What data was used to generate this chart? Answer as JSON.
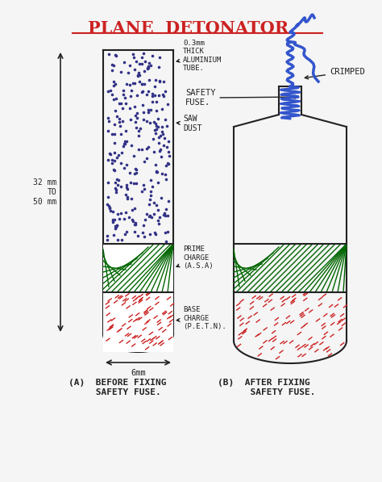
{
  "title": "PLANE  DETONATOR.",
  "title_color": "#cc2222",
  "bg_color": "#f5f5f5",
  "label_a": "(A)  BEFORE FIXING\n     SAFETY FUSE.",
  "label_b": "(B)  AFTER FIXING\n      SAFETY FUSE.",
  "annotation_aluminium": "0.3mm\nTHICK\nALUMINIUM\nTUBE.",
  "annotation_sawdust": "SAW\nDUST",
  "annotation_prime": "PRIME\nCHARGE\n(A.S.A)",
  "annotation_base": "BASE\nCHARGE\n(P.E.T.N).",
  "annotation_crimped": "CRIMPED",
  "annotation_safety": "SAFETY\nFUSE.",
  "dim_32_50": "32 mm\nTO\n50 mm",
  "dim_6mm": "6mm",
  "line_color": "#222222",
  "blue_fuse_color": "#3355cc",
  "green_hatch_color": "#006600",
  "red_dot_color": "#cc2222"
}
